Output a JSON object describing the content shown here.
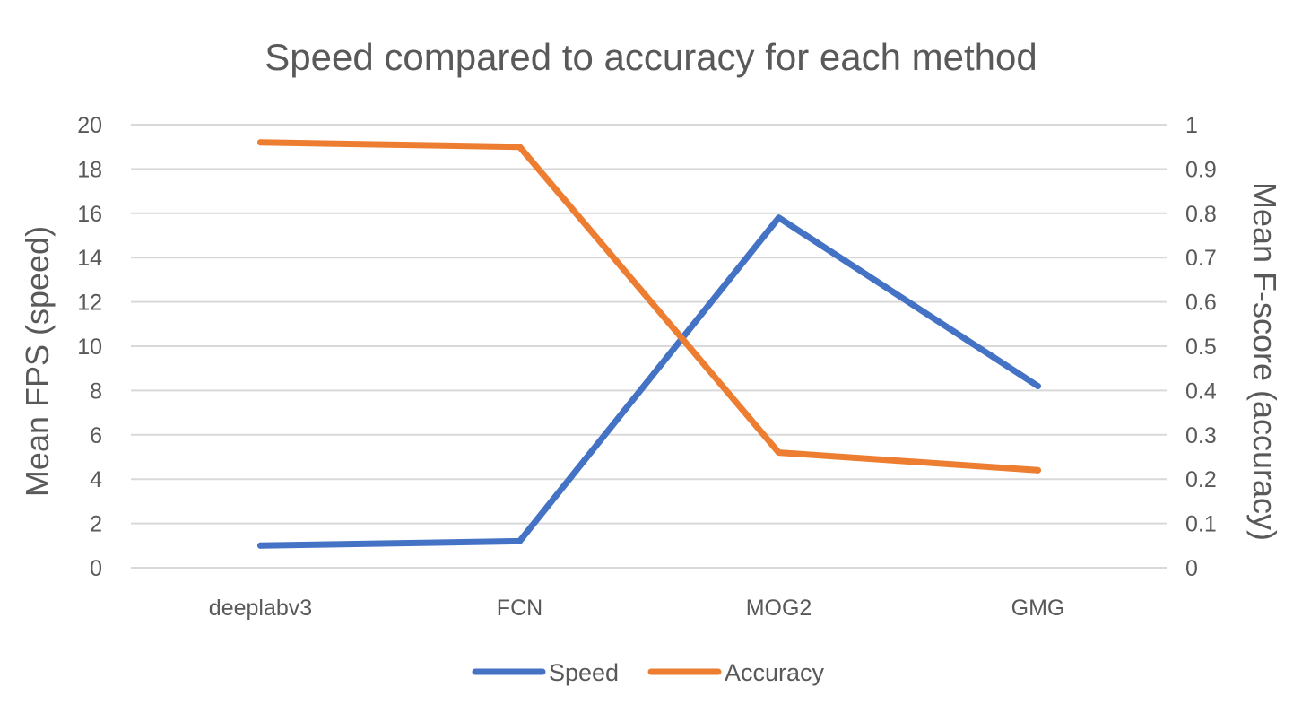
{
  "chart_data": {
    "type": "line",
    "title": "Speed compared to accuracy for each method",
    "categories": [
      "deeplabv3",
      "FCN",
      "MOG2",
      "GMG"
    ],
    "y_left": {
      "label": "Mean FPS (speed)",
      "min": 0,
      "max": 20,
      "ticks": [
        "0",
        "2",
        "4",
        "6",
        "8",
        "10",
        "12",
        "14",
        "16",
        "18",
        "20"
      ]
    },
    "y_right": {
      "label": "Mean F-score (accuracy)",
      "min": 0,
      "max": 1,
      "ticks": [
        "0",
        "0.1",
        "0.2",
        "0.3",
        "0.4",
        "0.5",
        "0.6",
        "0.7",
        "0.8",
        "0.9",
        "1"
      ]
    },
    "series": [
      {
        "name": "Speed",
        "axis": "left",
        "color": "#4472C4",
        "values": [
          1.0,
          1.2,
          15.8,
          8.2
        ]
      },
      {
        "name": "Accuracy",
        "axis": "right",
        "color": "#ED7D31",
        "values": [
          0.96,
          0.95,
          0.26,
          0.22
        ]
      }
    ],
    "grid": true,
    "legend": "bottom"
  }
}
